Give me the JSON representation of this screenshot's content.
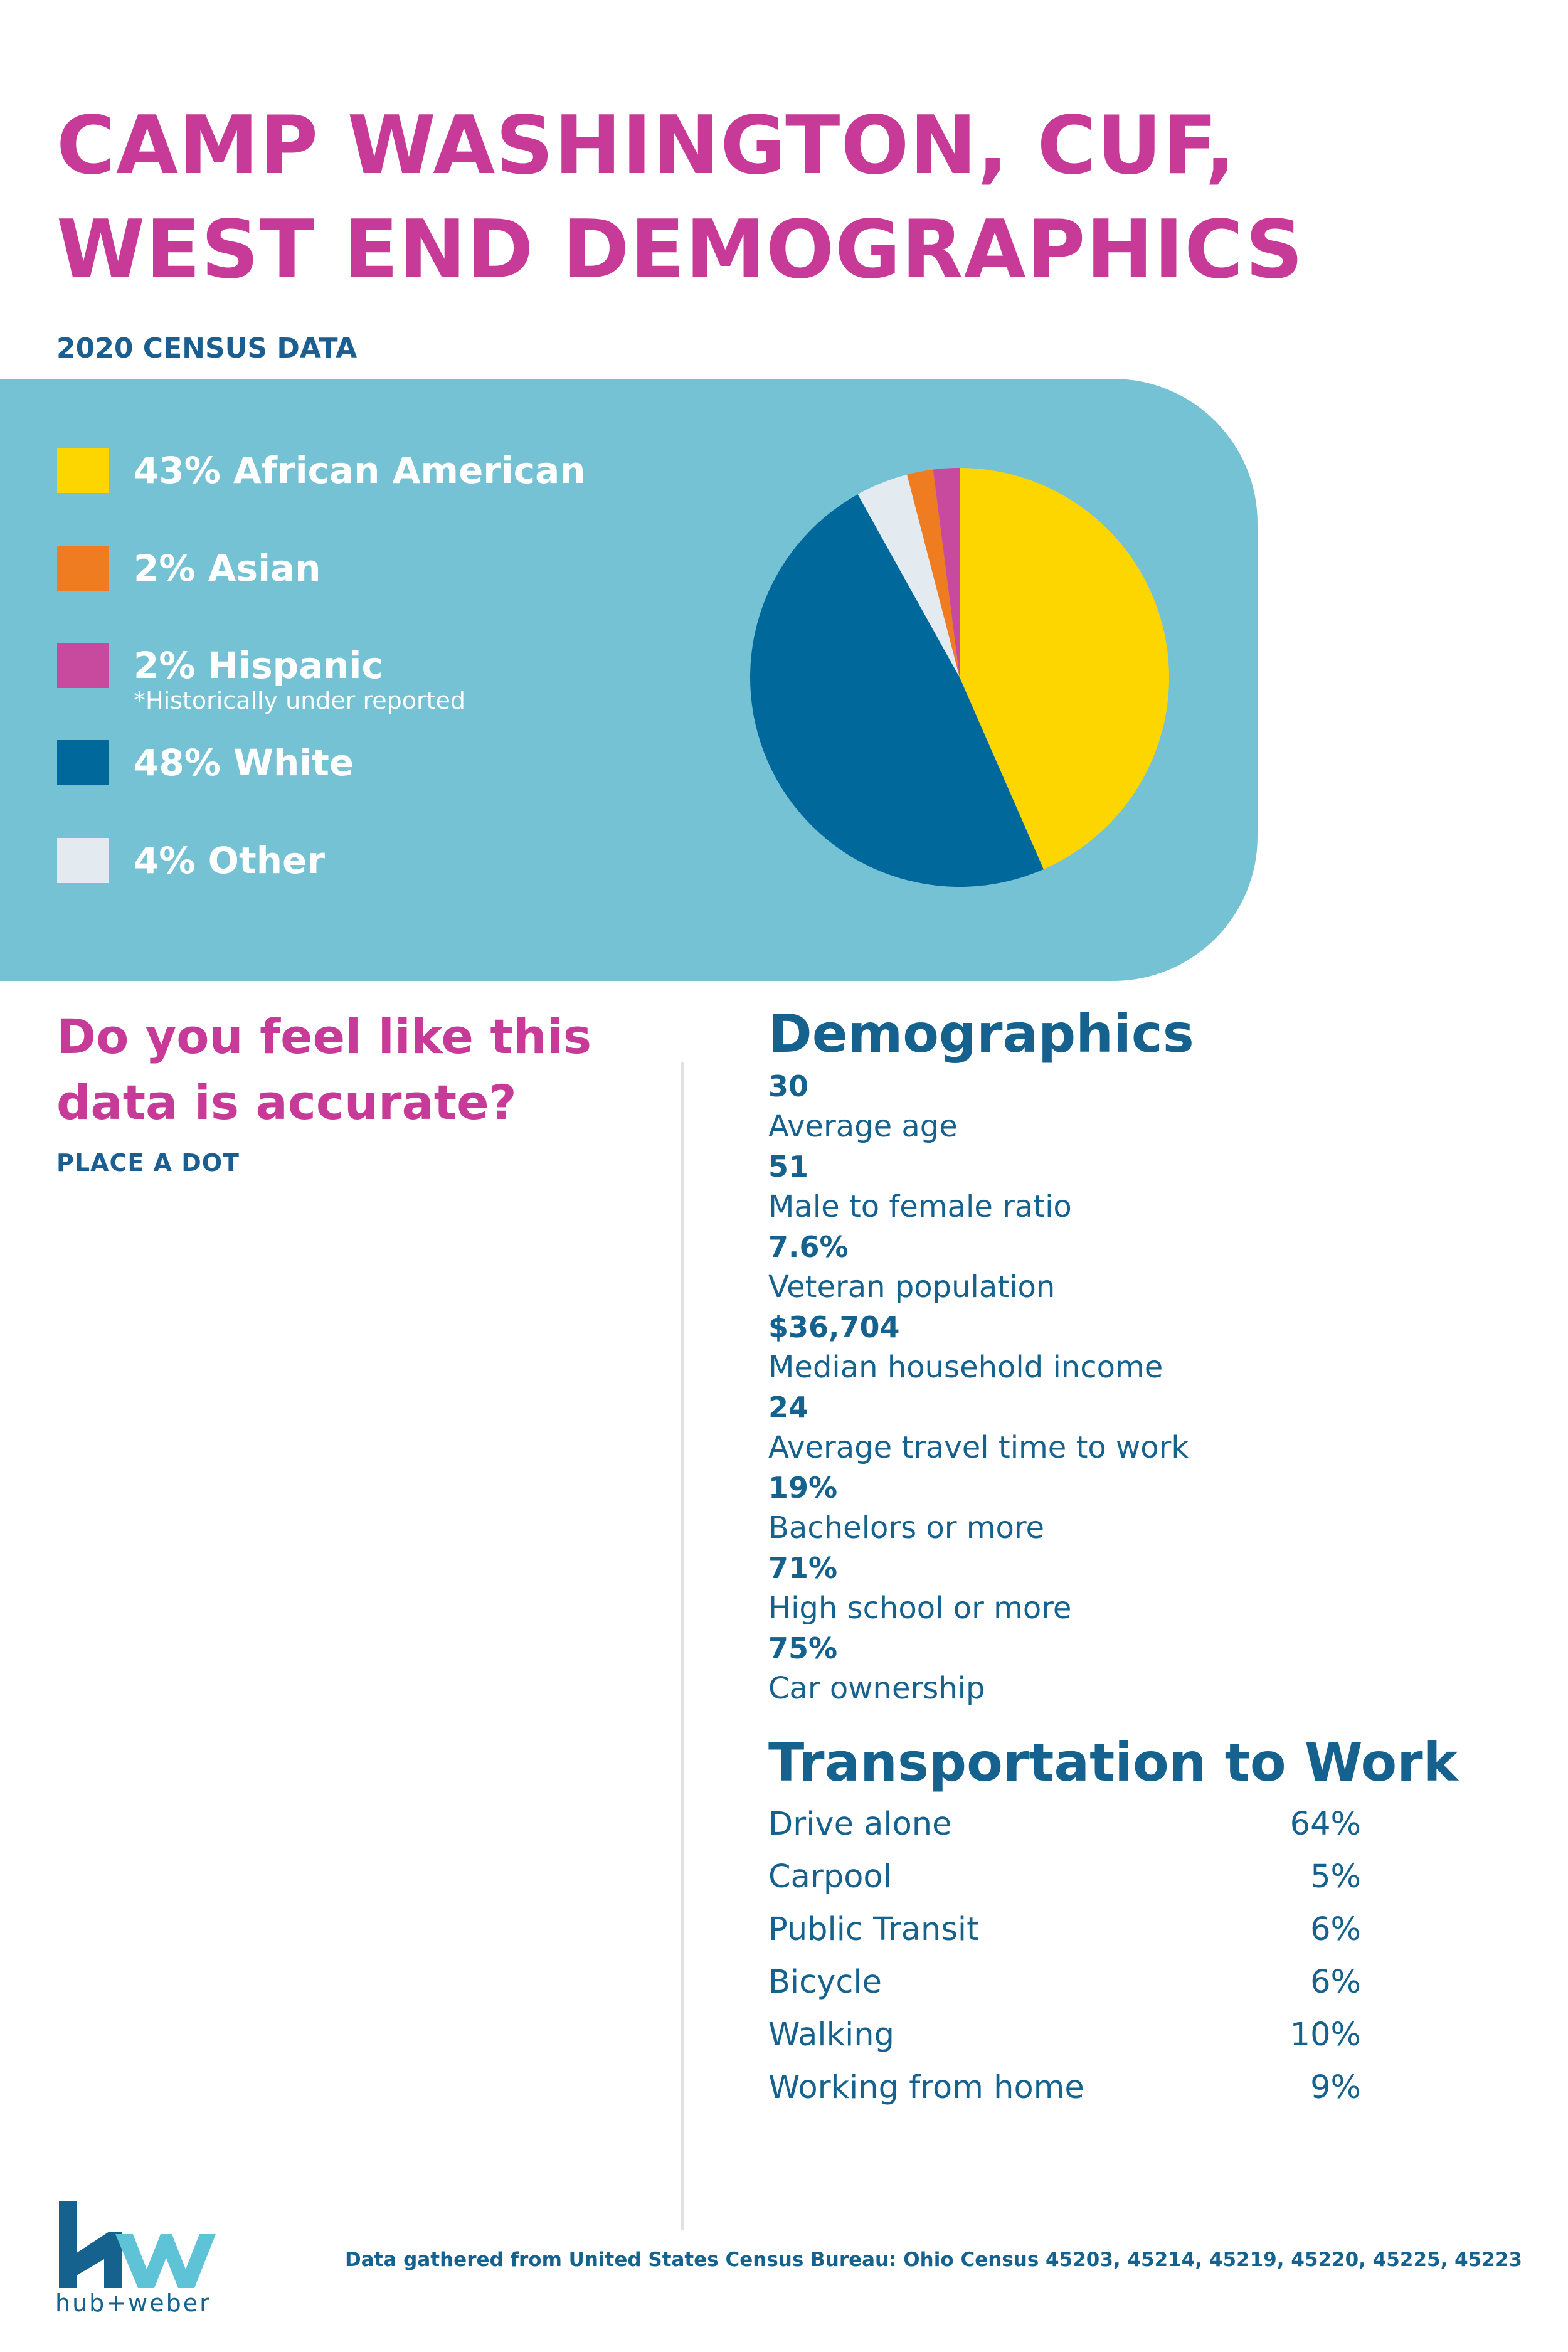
{
  "header": {
    "title_line1": "CAMP WASHINGTON, CUF,",
    "title_line2": "WEST END DEMOGRAPHICS",
    "subtitle": "2020 CENSUS DATA"
  },
  "legend": [
    {
      "label": "43% African American",
      "color": "#fdd600"
    },
    {
      "label": "2% Asian",
      "color": "#f07c22"
    },
    {
      "label": "2% Hispanic",
      "note": "*Historically under reported",
      "color": "#c74a9e"
    },
    {
      "label": "48% White",
      "color": "#00689b"
    },
    {
      "label": "4% Other",
      "color": "#e3eaf0"
    }
  ],
  "chart_data": {
    "type": "pie",
    "categories": [
      "African American",
      "White",
      "Other",
      "Asian",
      "Hispanic"
    ],
    "values": [
      43,
      48,
      4,
      2,
      2
    ],
    "colors": [
      "#fdd600",
      "#00689b",
      "#e3eaf0",
      "#f07c22",
      "#c74a9e"
    ],
    "start": "12 o'clock, clockwise"
  },
  "question": {
    "text": "Do you feel like this data is accurate?",
    "instruction": "PLACE A DOT"
  },
  "demographics": {
    "title": "Demographics",
    "items": [
      {
        "value": "30",
        "label": "Average age"
      },
      {
        "value": "51",
        "label": "Male to female ratio"
      },
      {
        "value": "7.6%",
        "label": "Veteran population"
      },
      {
        "value": "$36,704",
        "label": "Median household income"
      },
      {
        "value": "24",
        "label": "Average travel time to work"
      },
      {
        "value": "19%",
        "label": "Bachelors or more"
      },
      {
        "value": "71%",
        "label": "High school or more"
      },
      {
        "value": "75%",
        "label": "Car ownership"
      }
    ]
  },
  "transportation": {
    "title": "Transportation to Work",
    "rows": [
      {
        "mode": "Drive alone",
        "percent": "64%"
      },
      {
        "mode": "Carpool",
        "percent": "5%"
      },
      {
        "mode": "Public Transit",
        "percent": "6%"
      },
      {
        "mode": "Bicycle",
        "percent": "6%"
      },
      {
        "mode": "Walking",
        "percent": "10%"
      },
      {
        "mode": "Working from home",
        "percent": "9%"
      }
    ]
  },
  "footer": {
    "logo_text": "hub+weber",
    "source": "Data gathered from United States Census Bureau: Ohio Census 45203, 45214, 45219, 45220, 45225, 45223"
  }
}
